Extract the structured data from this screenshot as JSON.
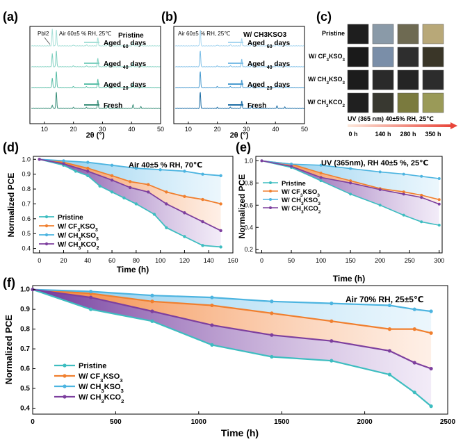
{
  "colors": {
    "pristine": "#3dbdc0",
    "cf3": "#f07f2e",
    "ch3kso3": "#4cb4e0",
    "ch3kco2": "#7d3f9e",
    "xrd_fresh": "#3a8f7a",
    "xrd_20": "#5bbfa8",
    "xrd_40": "#7fd0c0",
    "xrd_60": "#a8e0d8",
    "xrd_b_fresh": "#1f6fa6",
    "xrd_b_20": "#4a9bd0",
    "xrd_b_40": "#7bbde6",
    "xrd_b_60": "#a8d6f0"
  },
  "panel_c": {
    "label": "(c)",
    "rows": [
      "Pristine",
      "W/ CF3KSO3",
      "W/ CH3KSO3",
      "W/ CH3KCO2"
    ],
    "condition": "UV (365 nm)  40±5% RH, 25℃",
    "times": [
      "0 h",
      "140 h",
      "280 h",
      "350 h"
    ],
    "swatches": [
      [
        "#1e1e1e",
        "#8a9aa8",
        "#6e6a52",
        "#b8a878"
      ],
      [
        "#1a1a1a",
        "#7a8ea8",
        "#2e2e2e",
        "#3a3628"
      ],
      [
        "#1c1c1c",
        "#2a2a2a",
        "#242424",
        "#2c2c2c"
      ],
      [
        "#202020",
        "#383830",
        "#7a7a3e",
        "#9a9a58"
      ]
    ]
  },
  "chart_data": [
    {
      "id": "a",
      "label": "(a)",
      "type": "line",
      "title": "Pristine",
      "annotation": "Air 60±5 % RH, 25℃",
      "peak_label": "PbI2",
      "xlabel": "2θ (°)",
      "xlim": [
        5,
        50
      ],
      "xticks": [
        10,
        20,
        30,
        40,
        50
      ],
      "peaks": [
        {
          "x": 12.7,
          "h": 0.2
        },
        {
          "x": 14.1,
          "h": 1.0
        },
        {
          "x": 20.0,
          "h": 0.06
        },
        {
          "x": 24.5,
          "h": 0.07
        },
        {
          "x": 28.4,
          "h": 0.5
        },
        {
          "x": 31.8,
          "h": 0.16
        },
        {
          "x": 40.5,
          "h": 0.22
        },
        {
          "x": 43.2,
          "h": 0.1
        }
      ],
      "series": [
        {
          "name": "Fresh",
          "pbi2": 0.0
        },
        {
          "name": "Aged 20 days",
          "pbi2": 0.45
        },
        {
          "name": "Aged 40 days",
          "pbi2": 0.7
        },
        {
          "name": "Aged 60 days",
          "pbi2": 0.95
        }
      ]
    },
    {
      "id": "b",
      "label": "(b)",
      "type": "line",
      "title": "W/ CH3KSO3",
      "annotation": "Air 60±5 % RH, 25℃",
      "xlabel": "2θ (°)",
      "xlim": [
        5,
        50
      ],
      "xticks": [
        10,
        20,
        30,
        40,
        50
      ],
      "peaks": [
        {
          "x": 14.1,
          "h": 1.0
        },
        {
          "x": 20.0,
          "h": 0.06
        },
        {
          "x": 24.5,
          "h": 0.08
        },
        {
          "x": 28.4,
          "h": 0.45
        },
        {
          "x": 31.8,
          "h": 0.15
        },
        {
          "x": 40.5,
          "h": 0.15
        },
        {
          "x": 43.2,
          "h": 0.08
        }
      ],
      "series": [
        {
          "name": "Fresh"
        },
        {
          "name": "Aged 20 days"
        },
        {
          "name": "Aged 40 days"
        },
        {
          "name": "Aged 60 days"
        }
      ]
    },
    {
      "id": "d",
      "label": "(d)",
      "type": "line",
      "annotation": "Air 40±5 % RH, 70℃",
      "xlabel": "Time (h)",
      "ylabel": "Normalized PCE",
      "xlim": [
        -5,
        160
      ],
      "ylim": [
        0.37,
        1.02
      ],
      "xticks": [
        0,
        20,
        40,
        60,
        80,
        100,
        120,
        140,
        160
      ],
      "yticks": [
        0.4,
        0.5,
        0.6,
        0.7,
        0.8,
        0.9,
        1.0
      ],
      "legend": "bottom-left",
      "series": [
        {
          "name": "Pristine",
          "x": [
            0,
            20,
            30,
            40,
            50,
            60,
            70,
            80,
            95,
            105,
            120,
            135,
            150
          ],
          "y": [
            1.0,
            0.96,
            0.92,
            0.89,
            0.82,
            0.78,
            0.74,
            0.7,
            0.63,
            0.54,
            0.48,
            0.42,
            0.41
          ]
        },
        {
          "name": "W/ CF3KSO3",
          "x": [
            0,
            20,
            40,
            60,
            75,
            90,
            105,
            120,
            135,
            150
          ],
          "y": [
            1.0,
            0.98,
            0.94,
            0.89,
            0.85,
            0.83,
            0.78,
            0.75,
            0.73,
            0.7
          ]
        },
        {
          "name": "W/ CH3KSO3",
          "x": [
            0,
            20,
            40,
            60,
            80,
            100,
            120,
            135,
            150
          ],
          "y": [
            1.0,
            0.99,
            0.98,
            0.96,
            0.94,
            0.93,
            0.92,
            0.9,
            0.89
          ]
        },
        {
          "name": "W/ CH3KCO2",
          "x": [
            0,
            20,
            40,
            60,
            75,
            90,
            105,
            120,
            135,
            150
          ],
          "y": [
            1.0,
            0.97,
            0.92,
            0.86,
            0.81,
            0.78,
            0.7,
            0.64,
            0.58,
            0.52
          ]
        }
      ]
    },
    {
      "id": "e",
      "label": "(e)",
      "type": "line",
      "annotation": "UV (365nm), RH 40±5 %, 25℃",
      "xlabel": "Time (h)",
      "ylabel": "Normalized PCE",
      "xlim": [
        -10,
        305
      ],
      "ylim": [
        0.17,
        1.04
      ],
      "xticks": [
        0,
        50,
        100,
        150,
        200,
        250,
        300
      ],
      "yticks": [
        0.2,
        0.4,
        0.6,
        0.8,
        1.0
      ],
      "legend": "top-left",
      "series": [
        {
          "name": "Pristine",
          "x": [
            0,
            50,
            100,
            150,
            200,
            240,
            270,
            300
          ],
          "y": [
            1.0,
            0.94,
            0.82,
            0.7,
            0.6,
            0.51,
            0.45,
            0.42
          ]
        },
        {
          "name": "W/ CF3KSO3",
          "x": [
            0,
            50,
            100,
            150,
            200,
            240,
            270,
            300
          ],
          "y": [
            1.0,
            0.97,
            0.89,
            0.82,
            0.75,
            0.72,
            0.69,
            0.65
          ]
        },
        {
          "name": "W/ CH3KSO3",
          "x": [
            0,
            50,
            100,
            150,
            200,
            240,
            270,
            300
          ],
          "y": [
            1.0,
            0.97,
            0.96,
            0.93,
            0.9,
            0.88,
            0.86,
            0.84
          ]
        },
        {
          "name": "W/ CH3KCO2",
          "x": [
            0,
            50,
            100,
            150,
            200,
            240,
            270,
            300
          ],
          "y": [
            1.0,
            0.95,
            0.85,
            0.8,
            0.74,
            0.7,
            0.67,
            0.61
          ]
        }
      ]
    },
    {
      "id": "f",
      "label": "(f)",
      "type": "line",
      "annotation": "Air 70% RH,  25±5℃",
      "xlabel": "Time (h)",
      "ylabel": "Normalized PCE",
      "xlim": [
        0,
        2500
      ],
      "ylim": [
        0.37,
        1.02
      ],
      "xticks": [
        0,
        500,
        1000,
        1500,
        2000,
        2500
      ],
      "yticks": [
        0.4,
        0.5,
        0.6,
        0.7,
        0.8,
        0.9,
        1.0
      ],
      "legend": "bottom-left",
      "series": [
        {
          "name": "Pristine",
          "x": [
            0,
            350,
            720,
            1080,
            1440,
            1800,
            2150,
            2300,
            2400
          ],
          "y": [
            1.0,
            0.9,
            0.84,
            0.72,
            0.66,
            0.64,
            0.57,
            0.48,
            0.41
          ]
        },
        {
          "name": "W/ CF3KSO3",
          "x": [
            0,
            350,
            720,
            1080,
            1440,
            1800,
            2150,
            2300,
            2400
          ],
          "y": [
            1.0,
            0.98,
            0.94,
            0.92,
            0.88,
            0.84,
            0.8,
            0.8,
            0.78
          ]
        },
        {
          "name": "W/ CH3KSO3",
          "x": [
            0,
            350,
            720,
            1080,
            1440,
            1800,
            2150,
            2300,
            2400
          ],
          "y": [
            1.0,
            0.99,
            0.97,
            0.96,
            0.94,
            0.93,
            0.92,
            0.9,
            0.89
          ]
        },
        {
          "name": "W/ CH3KCO2",
          "x": [
            0,
            350,
            720,
            1080,
            1440,
            1800,
            2150,
            2300,
            2400
          ],
          "y": [
            1.0,
            0.96,
            0.89,
            0.82,
            0.77,
            0.74,
            0.69,
            0.63,
            0.6
          ]
        }
      ]
    }
  ]
}
